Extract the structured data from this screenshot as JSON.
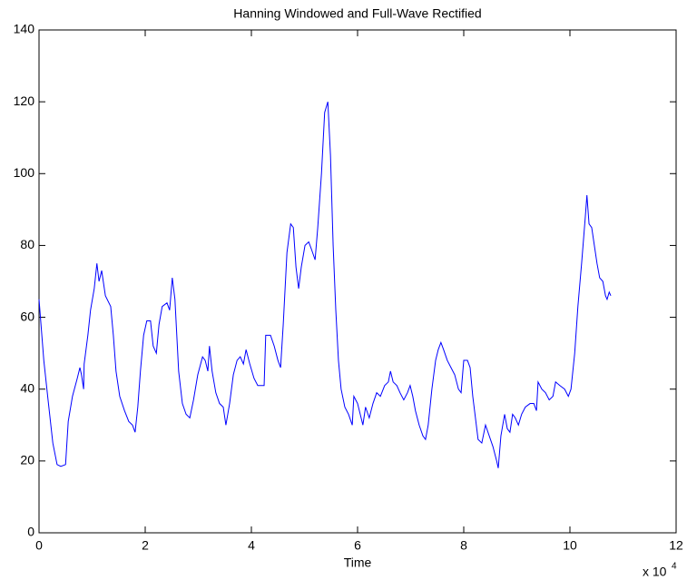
{
  "chart_data": {
    "type": "line",
    "title": "Hanning Windowed and Full-Wave Rectified",
    "x_label": "Time",
    "x_scale_label": "x 10",
    "x_scale_exponent": "4",
    "xlim": [
      0,
      12
    ],
    "xticks": [
      0,
      2,
      4,
      6,
      8,
      10,
      12
    ],
    "ylim": [
      0,
      140
    ],
    "yticks": [
      0,
      20,
      40,
      60,
      80,
      100,
      120,
      140
    ],
    "grid": false,
    "series": [
      {
        "color": "#0000ff",
        "x": [
          0,
          0.09,
          0.17,
          0.26,
          0.34,
          0.41,
          0.5,
          0.55,
          0.63,
          0.72,
          0.77,
          0.8,
          0.84,
          0.85,
          0.92,
          0.97,
          1.04,
          1.09,
          1.13,
          1.18,
          1.25,
          1.35,
          1.4,
          1.45,
          1.52,
          1.61,
          1.69,
          1.76,
          1.81,
          1.86,
          1.91,
          1.97,
          2.03,
          2.1,
          2.15,
          2.21,
          2.26,
          2.32,
          2.41,
          2.46,
          2.51,
          2.56,
          2.63,
          2.7,
          2.77,
          2.84,
          2.91,
          2.99,
          3.08,
          3.13,
          3.18,
          3.21,
          3.26,
          3.33,
          3.4,
          3.47,
          3.52,
          3.59,
          3.66,
          3.73,
          3.79,
          3.85,
          3.9,
          3.97,
          4.05,
          4.12,
          4.19,
          4.24,
          4.27,
          4.36,
          4.43,
          4.5,
          4.55,
          4.6,
          4.67,
          4.74,
          4.79,
          4.84,
          4.89,
          4.94,
          5.01,
          5.08,
          5.13,
          5.2,
          5.25,
          5.32,
          5.38,
          5.44,
          5.49,
          5.54,
          5.59,
          5.64,
          5.69,
          5.76,
          5.83,
          5.9,
          5.93,
          6.0,
          6.05,
          6.1,
          6.15,
          6.22,
          6.29,
          6.36,
          6.43,
          6.51,
          6.58,
          6.62,
          6.67,
          6.74,
          6.8,
          6.87,
          6.94,
          6.99,
          7.04,
          7.09,
          7.16,
          7.23,
          7.28,
          7.33,
          7.4,
          7.47,
          7.52,
          7.57,
          7.62,
          7.69,
          7.76,
          7.83,
          7.9,
          7.95,
          8.0,
          8.07,
          8.12,
          8.17,
          8.22,
          8.27,
          8.34,
          8.41,
          8.48,
          8.55,
          8.62,
          8.65,
          8.7,
          8.77,
          8.82,
          8.87,
          8.92,
          8.97,
          9.03,
          9.09,
          9.16,
          9.25,
          9.32,
          9.37,
          9.4,
          9.47,
          9.54,
          9.61,
          9.68,
          9.73,
          9.81,
          9.9,
          9.97,
          10.02,
          10.09,
          10.15,
          10.22,
          10.29,
          10.32,
          10.36,
          10.41,
          10.46,
          10.51,
          10.56,
          10.62,
          10.67,
          10.7,
          10.74,
          10.77
        ],
        "values": [
          65,
          48,
          37,
          25,
          19,
          18.5,
          19,
          31,
          38,
          43,
          46,
          44,
          40,
          47,
          55,
          62,
          68,
          75,
          70,
          73,
          66,
          63,
          55,
          45,
          38,
          34,
          31,
          30,
          28,
          35,
          45,
          55,
          59,
          59,
          52,
          50,
          58,
          63,
          64,
          62,
          71,
          65,
          45,
          36,
          33,
          32,
          37,
          44,
          49,
          48,
          45,
          52,
          45,
          39,
          36,
          35,
          30,
          36,
          44,
          48,
          49,
          47,
          51,
          47,
          43,
          41,
          41,
          41,
          55,
          55,
          52,
          48,
          46,
          58,
          78,
          86,
          85,
          74,
          68,
          74,
          80,
          81,
          79,
          76,
          85,
          100,
          117,
          120,
          105,
          80,
          62,
          48,
          40,
          35,
          33,
          30,
          38,
          36,
          33,
          30,
          35,
          32,
          36,
          39,
          38,
          41,
          42,
          45,
          42,
          41,
          39,
          37,
          39,
          41,
          38,
          34,
          30,
          27,
          26,
          30,
          40,
          48,
          51,
          53,
          51,
          48,
          46,
          44,
          40,
          39,
          48,
          48,
          46,
          38,
          32,
          26,
          25,
          30,
          27,
          24,
          20,
          18,
          27,
          33,
          29,
          28,
          33,
          32,
          30,
          33,
          35,
          36,
          36,
          34,
          42,
          40,
          39,
          37,
          38,
          42,
          41,
          40,
          38,
          40,
          50,
          63,
          75,
          88,
          94,
          86,
          85,
          80,
          75,
          71,
          70,
          66,
          65,
          67,
          66
        ]
      }
    ]
  }
}
